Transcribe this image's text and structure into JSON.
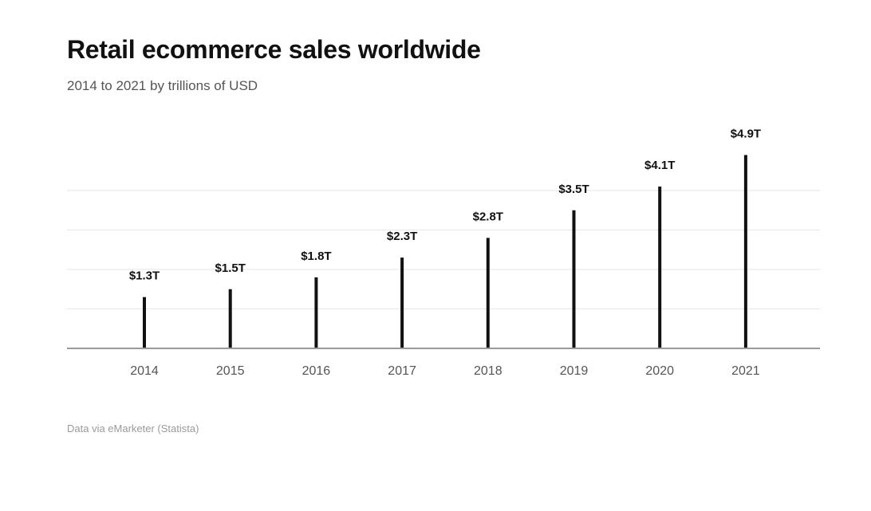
{
  "chart_data": {
    "type": "bar",
    "title": "Retail ecommerce sales worldwide",
    "subtitle": "2014 to 2021 by trillions of USD",
    "categories": [
      "2014",
      "2015",
      "2016",
      "2017",
      "2018",
      "2019",
      "2020",
      "2021"
    ],
    "values": [
      1.3,
      1.5,
      1.8,
      2.3,
      2.8,
      3.5,
      4.1,
      4.9
    ],
    "data_labels": [
      "$1.3T",
      "$1.5T",
      "$1.8T",
      "$2.3T",
      "$2.8T",
      "$3.5T",
      "$4.1T",
      "$4.9T"
    ],
    "xlabel": "",
    "ylabel": "",
    "ylim": [
      0,
      5
    ],
    "grid": true,
    "source": "Data via eMarketer (Statista)",
    "colors": {
      "bar": "#111111",
      "grid": "#e6e6e6",
      "axis": "#999999"
    }
  }
}
